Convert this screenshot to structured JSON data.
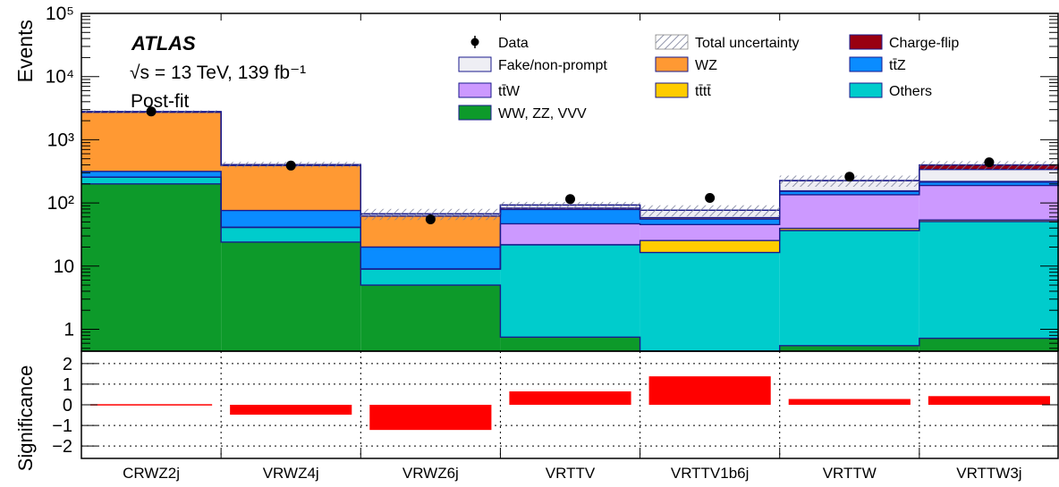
{
  "chart_data": {
    "type": "bar",
    "stacked": true,
    "yscale": "log",
    "categories": [
      "CRWZ2j",
      "VRWZ4j",
      "VRWZ6j",
      "VRTTV",
      "VRTTV1b6j",
      "VRTTW",
      "VRTTW3j"
    ],
    "ylabel": "Events",
    "ylim": [
      0.45,
      100000
    ],
    "ytick_labels": [
      "1",
      "10",
      "10²",
      "10³",
      "10⁴",
      "10⁵"
    ],
    "experiment": "ATLAS",
    "energy_label": "√s = 13 TeV, 139 fb⁻¹",
    "fit_label": "Post-fit",
    "legend_placement": "top-right",
    "series": [
      {
        "name": "WW, ZZ, VVV",
        "color": "#0d9a2a",
        "values": [
          200,
          24,
          5,
          0.75,
          0.4,
          0.55,
          0.72
        ]
      },
      {
        "name": "Others",
        "color": "#00cccc",
        "values": [
          55,
          17,
          4,
          21,
          16,
          36,
          50
        ]
      },
      {
        "name": "tt̄tt̄",
        "color": "#ffcc00",
        "values": [
          0,
          0,
          0,
          0,
          9,
          3,
          3
        ]
      },
      {
        "name": "tt̄W",
        "color": "#cc99ff",
        "values": [
          0,
          0,
          0,
          25,
          20,
          95,
          135
        ]
      },
      {
        "name": "tt̄Z",
        "color": "#0a8cff",
        "values": [
          60,
          35,
          11,
          32,
          10,
          18,
          25
        ]
      },
      {
        "name": "WZ",
        "color": "#ff9933",
        "values": [
          2400,
          315,
          42,
          4,
          3,
          3,
          5
        ]
      },
      {
        "name": "Fake/non-prompt",
        "color": "#eeeef4",
        "values": [
          70,
          14,
          5,
          10,
          18,
          70,
          120
        ]
      },
      {
        "name": "Charge-flip",
        "color": "#990011",
        "values": [
          0,
          0,
          0,
          0,
          0,
          0,
          60
        ]
      }
    ],
    "data": {
      "name": "Data",
      "values": [
        2800,
        390,
        55,
        115,
        120,
        260,
        440
      ]
    },
    "uncertainty": {
      "name": "Total uncertainty",
      "rel": [
        0.05,
        0.1,
        0.2,
        0.12,
        0.2,
        0.2,
        0.15
      ]
    },
    "significance": {
      "ylabel": "Significance",
      "ylim": [
        -2.6,
        2.6
      ],
      "ticks": [
        -2,
        -1,
        0,
        1,
        2
      ],
      "tick_labels": [
        "−2",
        "−1",
        "0",
        "1",
        "2"
      ],
      "values": [
        0.03,
        -0.48,
        -1.22,
        0.65,
        1.38,
        0.28,
        0.42
      ],
      "color": "#ff0000"
    }
  }
}
